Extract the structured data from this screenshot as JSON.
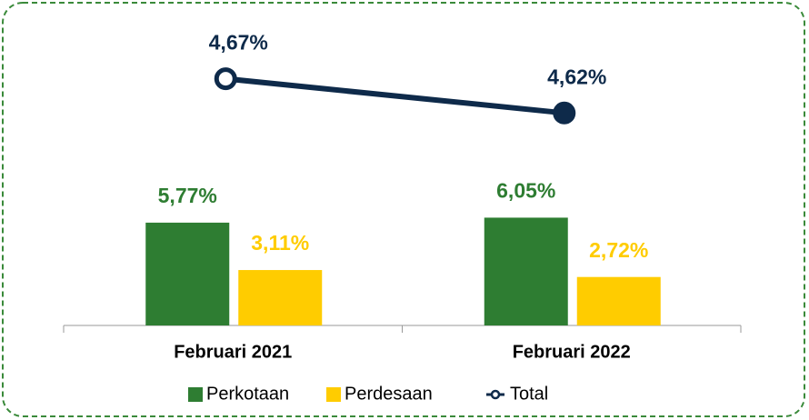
{
  "chart_data": {
    "type": "bar_line",
    "categories": [
      "Februari 2021",
      "Februari 2022"
    ],
    "series": [
      {
        "name": "Perkotaan",
        "type": "bar",
        "color": "#2e7d32",
        "values": [
          5.77,
          6.05
        ],
        "value_labels": [
          "5,77%",
          "6,05%"
        ]
      },
      {
        "name": "Perdesaan",
        "type": "bar",
        "color": "#ffcc00",
        "values": [
          3.11,
          2.72
        ],
        "value_labels": [
          "3,11%",
          "2,72%"
        ]
      },
      {
        "name": "Total",
        "type": "line",
        "axis": "y2",
        "color": "#0e2a4a",
        "values": [
          4.67,
          4.62
        ],
        "value_labels": [
          "4,67%",
          "4,62%"
        ]
      }
    ],
    "ylim": [
      0,
      15
    ],
    "y2lim": [
      4.31,
      4.7
    ],
    "legend": "bottom"
  }
}
